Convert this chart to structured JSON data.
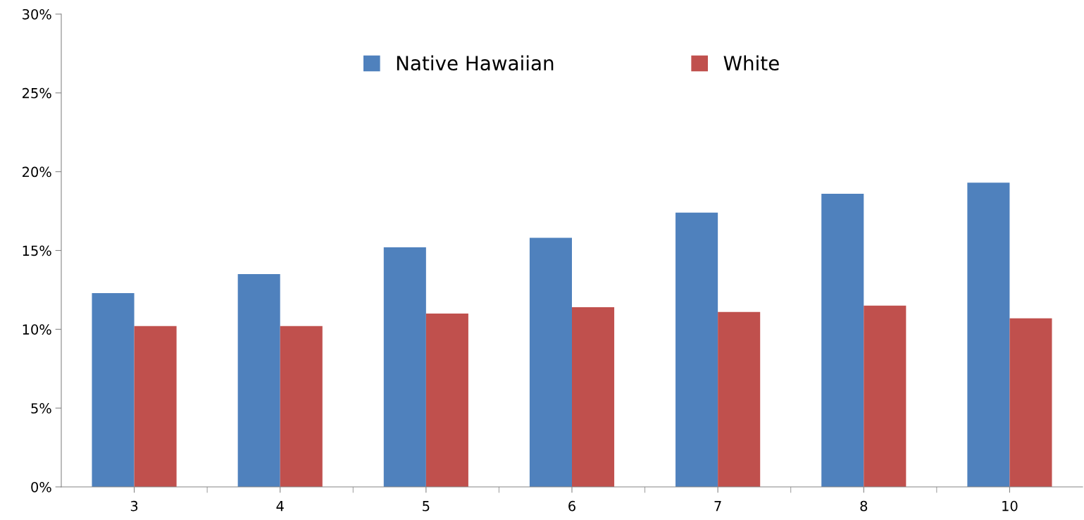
{
  "chart_data": {
    "type": "bar",
    "categories": [
      "3",
      "4",
      "5",
      "6",
      "7",
      "8",
      "10"
    ],
    "series": [
      {
        "name": "Native Hawaiian",
        "color": "#4f81bd",
        "values": [
          12.3,
          13.5,
          15.2,
          15.8,
          17.4,
          18.6,
          19.3
        ]
      },
      {
        "name": "White",
        "color": "#c0504d",
        "values": [
          10.2,
          10.2,
          11.0,
          11.4,
          11.1,
          11.5,
          10.7
        ]
      }
    ],
    "ylim": [
      0,
      30
    ],
    "yticks": [
      {
        "value": 0,
        "label": "0%"
      },
      {
        "value": 5,
        "label": "5%"
      },
      {
        "value": 10,
        "label": "10%"
      },
      {
        "value": 15,
        "label": "15%"
      },
      {
        "value": 20,
        "label": "20%"
      },
      {
        "value": 25,
        "label": "25%"
      },
      {
        "value": 30,
        "label": "30%"
      }
    ],
    "legend": "top"
  }
}
